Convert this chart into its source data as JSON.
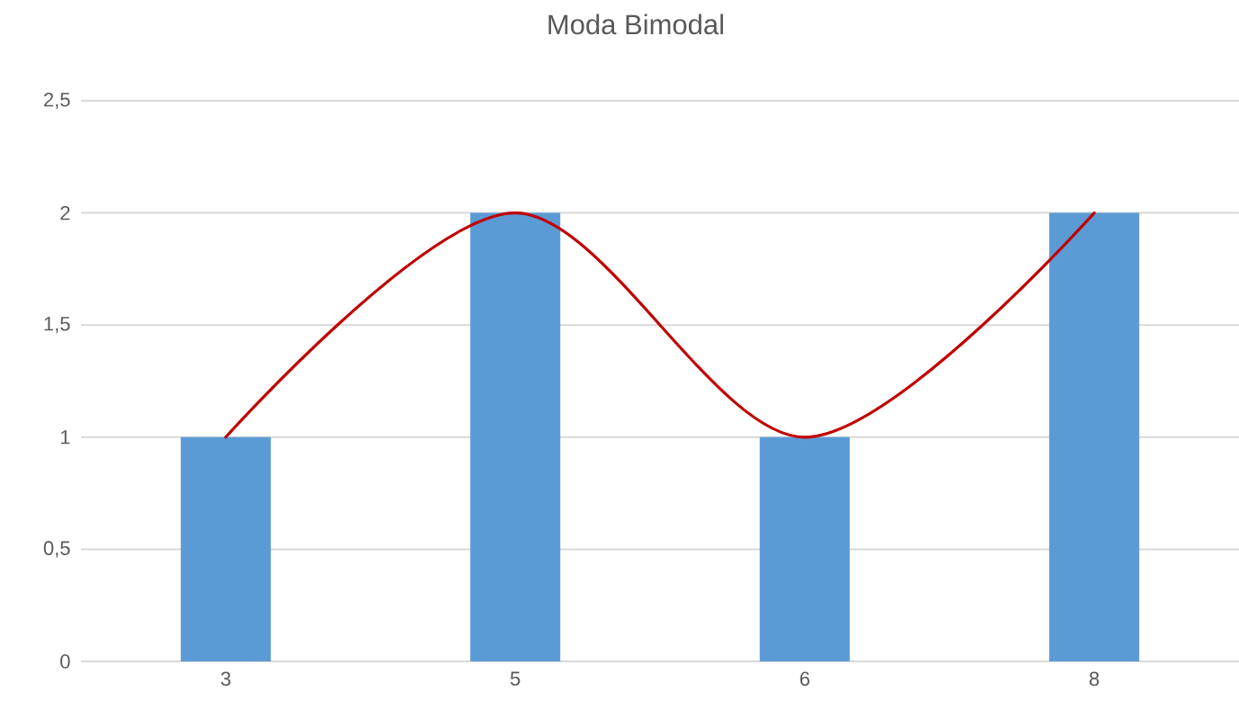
{
  "chart_data": {
    "type": "bar",
    "title": "Moda Bimodal",
    "categories": [
      "3",
      "5",
      "6",
      "8"
    ],
    "series": [
      {
        "color": "#5b9bd5",
        "values": [
          1,
          2,
          1,
          2
        ]
      },
      {
        "type": "line",
        "color": "#c00000",
        "values": [
          1,
          2,
          1,
          2
        ]
      }
    ],
    "ylim": [
      0,
      2.5
    ],
    "yticks": [
      0,
      {
        "value": 0.5,
        "label": "0,5"
      },
      1,
      {
        "value": 1.5,
        "label": "1,5"
      },
      2,
      {
        "value": 2.5,
        "label": "2,5"
      }
    ],
    "grid": "y"
  }
}
